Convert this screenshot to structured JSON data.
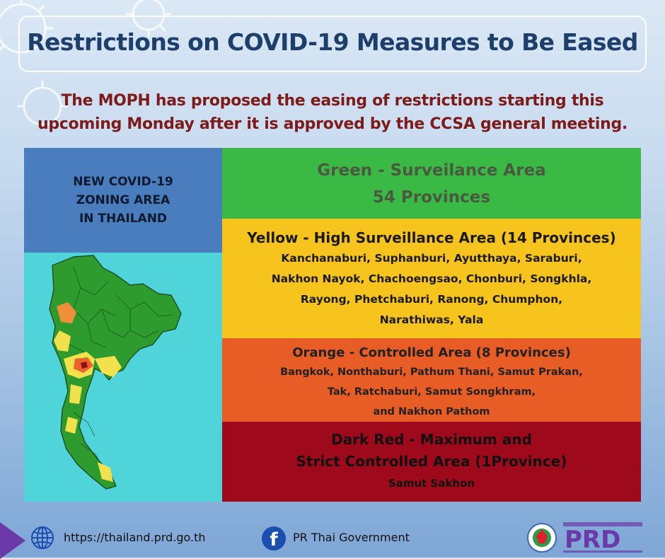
{
  "header": {
    "title": "Restrictions on COVID-19 Measures to Be Eased",
    "subtitle_line1": "The MOPH has proposed the easing of restrictions starting this",
    "subtitle_line2": "upcoming Monday after it is approved by the CCSA general meeting."
  },
  "left_panel": {
    "line1": "NEW COVID-19",
    "line2": "ZONING AREA",
    "line3": "IN THAILAND"
  },
  "zones": {
    "green": {
      "title": "Green - Surveilance Area",
      "count": "54 Provinces",
      "color": "#3aba45"
    },
    "yellow": {
      "title": "Yellow - High Surveillance Area (14 Provinces)",
      "line1": "Kanchanaburi, Suphanburi, Ayutthaya, Saraburi,",
      "line2": "Nakhon Nayok, Chachoengsao, Chonburi, Songkhla,",
      "line3": "Rayong, Phetchaburi, Ranong, Chumphon,",
      "line4": "Narathiwas, Yala",
      "color": "#f7c31d"
    },
    "orange": {
      "title": "Orange - Controlled Area (8 Provinces)",
      "line1": "Bangkok, Nonthaburi, Pathum Thani, Samut Prakan,",
      "line2": "Tak, Ratchaburi, Samut Songkhram,",
      "line3": "and Nakhon Pathom",
      "color": "#e85c25"
    },
    "red": {
      "title_line1": "Dark Red - Maximum and",
      "title_line2": "Strict Controlled Area (1Province)",
      "line1": "Samut Sakhon",
      "color": "#9e0a1b"
    }
  },
  "footer": {
    "url": "https://thailand.prd.go.th",
    "facebook_label": "PR Thai Government",
    "logo_text": "PRD",
    "globe_icon": "globe-icon",
    "facebook_icon": "facebook-icon"
  }
}
